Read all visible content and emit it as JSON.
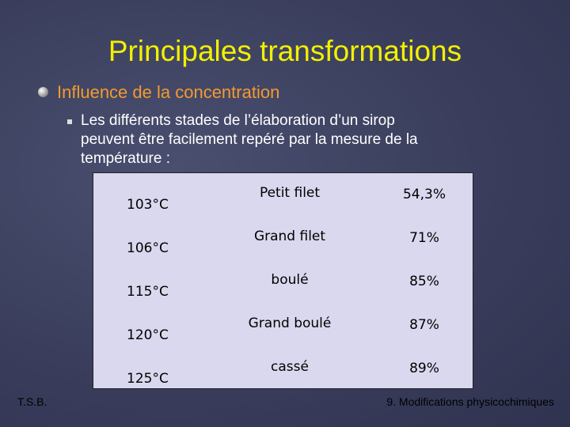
{
  "header": {
    "title": "Principales transformations"
  },
  "section": {
    "heading": "Influence de la concentration",
    "text_lines": [
      "Les différents stades de l’élaboration d’un sirop",
      "peuvent être facilement repéré par la mesure de la",
      "température :"
    ]
  },
  "table": {
    "rows": [
      [
        "103°C",
        "Petit filet",
        "54,3%"
      ],
      [
        "106°C",
        "Grand filet",
        "71%"
      ],
      [
        "115°C",
        "boulé",
        "85%"
      ],
      [
        "120°C",
        "Grand boulé",
        "87%"
      ],
      [
        "125°C",
        "cassé",
        "89%"
      ]
    ]
  },
  "footer": {
    "left": "T.S.B.",
    "right": "9. Modifications physicochimiques"
  }
}
